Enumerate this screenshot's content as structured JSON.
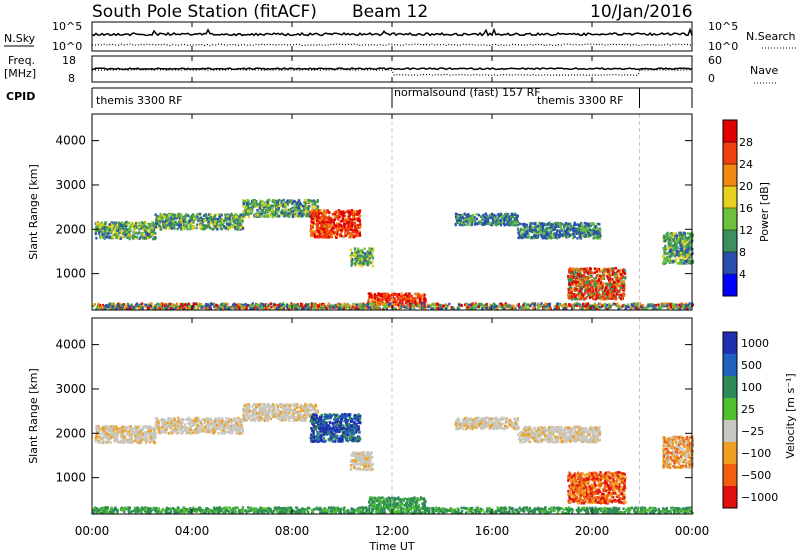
{
  "chart_data": {
    "type": "heatmap",
    "header": {
      "station": "South Pole Station (fitACF)",
      "beam": "Beam 12",
      "date": "10/Jan/2016"
    },
    "time_axis": {
      "label": "Time UT",
      "range_hours": [
        0,
        24
      ],
      "tick_labels": [
        "00:00",
        "04:00",
        "08:00",
        "12:00",
        "16:00",
        "20:00",
        "00:00"
      ],
      "tick_hours": [
        0,
        4,
        8,
        12,
        16,
        20,
        24
      ]
    },
    "nsky_panel": {
      "left_label": "N.Sky",
      "right_label": "N.Search",
      "left_ticks": [
        "10^5",
        "10^0"
      ],
      "right_ticks": [
        "10^5",
        "10^0"
      ]
    },
    "freq_panel": {
      "left_label_1": "Freq.",
      "left_label_2": "[MHz]",
      "left_ticks": [
        "18",
        "8"
      ],
      "right_label": "Nave",
      "right_ticks": [
        "60",
        "0"
      ]
    },
    "cpid_panel": {
      "label": "CPID",
      "segments": [
        {
          "text": "themis 3300 RF",
          "start_hour": 0,
          "end_hour": 12
        },
        {
          "text": "normalsound (fast) 157 RF",
          "start_hour": 12,
          "end_hour": 21.9
        },
        {
          "text": "themis 3300 RF",
          "start_hour": 21.9,
          "end_hour": 24
        }
      ],
      "markers_hours": [
        12,
        21.9
      ]
    },
    "power_panel": {
      "ylabel": "Slant Range [km]",
      "ylim": [
        180,
        4600
      ],
      "yticks": [
        "1000",
        "2000",
        "3000",
        "4000"
      ],
      "ytick_values": [
        1000,
        2000,
        3000,
        4000
      ],
      "colorbar": {
        "label": "Power [dB]",
        "range": [
          0,
          32
        ],
        "tick_labels": [
          "4",
          "8",
          "12",
          "16",
          "20",
          "24",
          "28"
        ],
        "tick_values": [
          4,
          8,
          12,
          16,
          20,
          24,
          28
        ],
        "colors": [
          "#0000ff",
          "#2b4fb0",
          "#3c8f5e",
          "#6cc23c",
          "#e8d020",
          "#f08a10",
          "#f04010",
          "#e00000"
        ]
      }
    },
    "velocity_panel": {
      "ylabel": "Slant Range [km]",
      "ylim": [
        180,
        4600
      ],
      "yticks": [
        "1000",
        "2000",
        "3000",
        "4000"
      ],
      "ytick_values": [
        1000,
        2000,
        3000,
        4000
      ],
      "colorbar": {
        "label": "Velocity [m s⁻¹]",
        "tick_labels": [
          "1000",
          "500",
          "100",
          "25",
          "−25",
          "−100",
          "−500",
          "−1000"
        ],
        "colors": [
          "#2030b0",
          "#2060c0",
          "#2e8a56",
          "#50c030",
          "#c8c8c0",
          "#f0a020",
          "#f06010",
          "#e01010"
        ]
      }
    },
    "scatter_regions": [
      {
        "start_hour": 0.1,
        "end_hour": 2.5,
        "range_center": 2000,
        "range_width": 380,
        "power": "green-blue",
        "velocity": "grey"
      },
      {
        "start_hour": 2.5,
        "end_hour": 6.0,
        "range_center": 2200,
        "range_width": 350,
        "power": "green-blue",
        "velocity": "grey"
      },
      {
        "start_hour": 6.0,
        "end_hour": 9.0,
        "range_center": 2500,
        "range_width": 380,
        "power": "green-blue",
        "velocity": "grey"
      },
      {
        "start_hour": 8.7,
        "end_hour": 10.7,
        "range_center": 2150,
        "range_width": 620,
        "power": "red-orange",
        "velocity": "blue"
      },
      {
        "start_hour": 10.3,
        "end_hour": 11.2,
        "range_center": 1400,
        "range_width": 400,
        "power": "green-blue",
        "velocity": "grey"
      },
      {
        "start_hour": 11.0,
        "end_hour": 13.3,
        "range_center": 450,
        "range_width": 260,
        "power": "red-orange",
        "velocity": "green"
      },
      {
        "start_hour": 14.5,
        "end_hour": 17.0,
        "range_center": 2250,
        "range_width": 260,
        "power": "blue-green",
        "velocity": "grey"
      },
      {
        "start_hour": 17.0,
        "end_hour": 20.3,
        "range_center": 2000,
        "range_width": 350,
        "power": "blue-green",
        "velocity": "grey"
      },
      {
        "start_hour": 19.0,
        "end_hour": 21.3,
        "range_center": 800,
        "range_width": 700,
        "power": "orange-red",
        "velocity": "red-orange"
      },
      {
        "start_hour": 22.8,
        "end_hour": 24.0,
        "range_center": 1600,
        "range_width": 700,
        "power": "green-blue",
        "velocity": "orange"
      },
      {
        "start_hour": 0.0,
        "end_hour": 24.0,
        "range_center": 280,
        "range_width": 150,
        "power": "mixed",
        "velocity": "green"
      }
    ]
  }
}
